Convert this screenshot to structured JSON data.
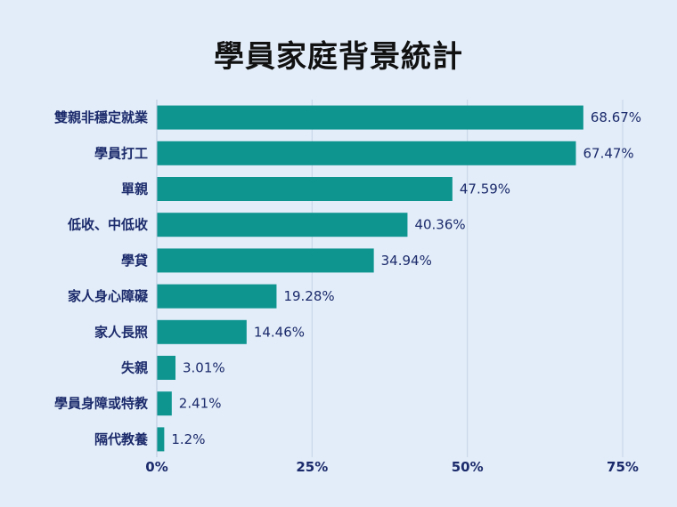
{
  "chart_data": {
    "type": "bar",
    "orientation": "horizontal",
    "title": "學員家庭背景統計",
    "categories": [
      "雙親非穩定就業",
      "學員打工",
      "單親",
      "低收、中低收",
      "學貸",
      "家人身心障礙",
      "家人長照",
      "失親",
      "學員身障或特教",
      "隔代教養"
    ],
    "values": [
      68.67,
      67.47,
      47.59,
      40.36,
      34.94,
      19.28,
      14.46,
      3.01,
      2.41,
      1.2
    ],
    "value_labels": [
      "68.67%",
      "67.47%",
      "47.59%",
      "40.36%",
      "34.94%",
      "19.28%",
      "14.46%",
      "3.01%",
      "2.41%",
      "1.2%"
    ],
    "xlim": [
      0,
      75
    ],
    "xticks": [
      0,
      25,
      50,
      75
    ],
    "xtick_labels": [
      "0%",
      "25%",
      "50%",
      "75%"
    ],
    "grid": true,
    "bar_color": "#0e9590"
  }
}
